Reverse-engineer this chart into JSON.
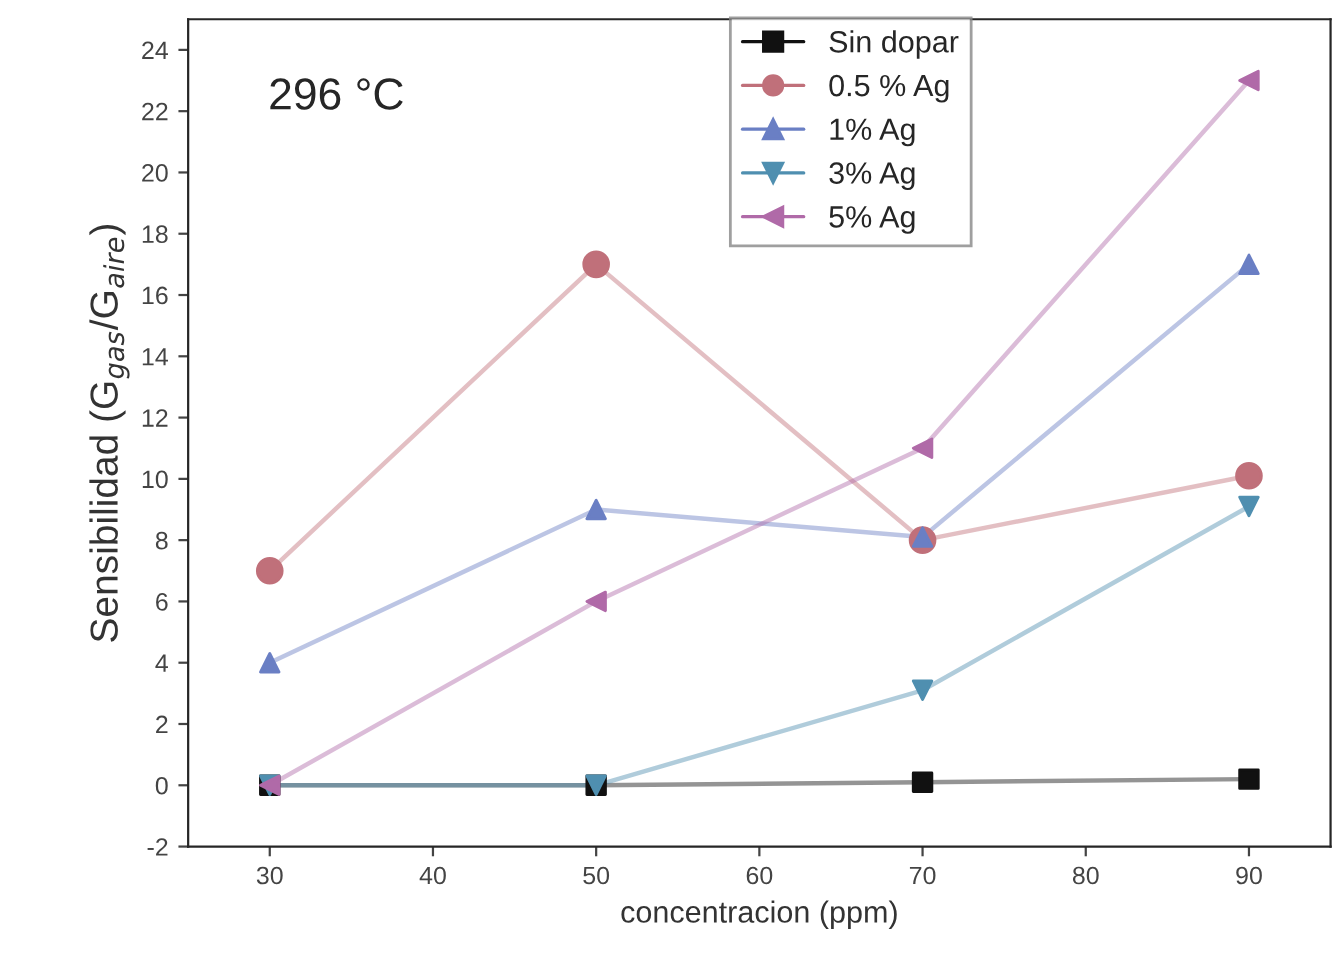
{
  "chart_data": {
    "type": "line",
    "xlabel": "concentracion (ppm)",
    "ylabel": "Sensibilidad (G$_{gas}$/G$_{aire}$)",
    "annotations": [
      "296 °C"
    ],
    "x": [
      30,
      50,
      70,
      90
    ],
    "series": [
      {
        "name": "Sin dopar",
        "color": "#111111",
        "marker": "square",
        "values": [
          0,
          0,
          0.1,
          0.2
        ]
      },
      {
        "name": "0.5 % Ag",
        "color": "#c0707a",
        "marker": "circle",
        "values": [
          7,
          17,
          8,
          10.1
        ]
      },
      {
        "name": "1% Ag",
        "color": "#6a7fc4",
        "marker": "triangle",
        "values": [
          4,
          9,
          8.1,
          17
        ]
      },
      {
        "name": "3% Ag",
        "color": "#4f8fb0",
        "marker": "triangle-down",
        "values": [
          0,
          0,
          3.1,
          9.1
        ]
      },
      {
        "name": "5% Ag",
        "color": "#b06aa8",
        "marker": "triangle-left",
        "values": [
          0,
          6,
          11,
          23
        ]
      }
    ],
    "xlim": [
      25,
      95
    ],
    "ylim": [
      -2,
      25
    ],
    "xticks": [
      30,
      40,
      50,
      60,
      70,
      80,
      90
    ],
    "yticks": [
      -2,
      0,
      2,
      4,
      6,
      8,
      10,
      12,
      14,
      16,
      18,
      20,
      22,
      24
    ],
    "grid": false,
    "legend": "top"
  }
}
